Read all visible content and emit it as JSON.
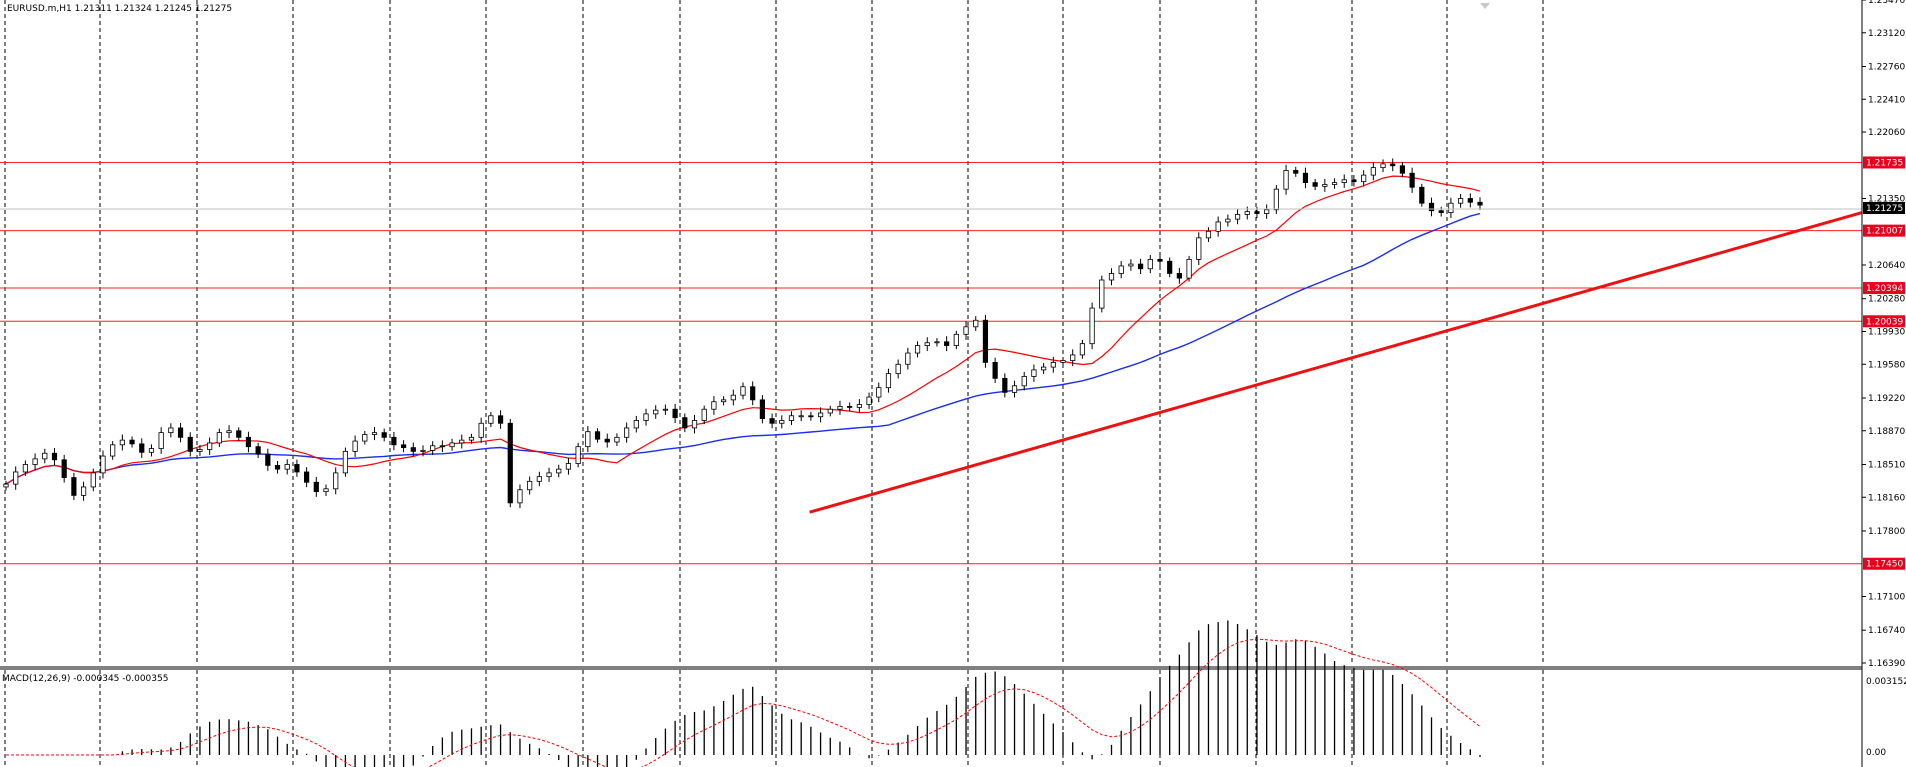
{
  "header": {
    "symbol_line": "EURUSD.m,H1  1.21311 1.21324 1.21245 1.21275"
  },
  "macd_header": {
    "text": "MACD(12,26,9) -0.000345 -0.000355"
  },
  "colors": {
    "background": "#ffffff",
    "candle": "#000000",
    "level_line": "#ff2020",
    "level_label_bg": "#e8001c",
    "trendline": "#ee1111",
    "ma_fast": "#ff0000",
    "ma_slow": "#1a2ef0",
    "macd_hist": "#000000",
    "macd_signal": "#ff0000",
    "grid": "#000000"
  },
  "chart_data": [
    {
      "type": "candlestick",
      "symbol": "EURUSD.m",
      "timeframe": "H1",
      "ohlc_last": {
        "open": 1.21311,
        "high": 1.21324,
        "low": 1.21245,
        "close": 1.21275
      },
      "current_price_label": "1.21275",
      "ylim": [
        1.1639,
        1.2347
      ],
      "y_ticks": [
        "1.23470",
        "1.23120",
        "1.22760",
        "1.22410",
        "1.22060",
        "1.21350",
        "1.20640",
        "1.20280",
        "1.19930",
        "1.19580",
        "1.19220",
        "1.18870",
        "1.18510",
        "1.18160",
        "1.17800",
        "1.17100",
        "1.16740",
        "1.16390"
      ],
      "horizontal_levels": [
        {
          "value": 1.21735,
          "label": "1.21735"
        },
        {
          "value": 1.21007,
          "label": "1.21007"
        },
        {
          "value": 1.20394,
          "label": "1.20394"
        },
        {
          "value": 1.20039,
          "label": "1.20039"
        },
        {
          "value": 1.1745,
          "label": "1.17450"
        }
      ],
      "trendline": {
        "from": [
          0.293,
          1.18
        ],
        "to": [
          1.0,
          1.212
        ]
      },
      "close_series": [
        1.183,
        1.1843,
        1.1851,
        1.1857,
        1.1863,
        1.1856,
        1.1837,
        1.1818,
        1.1827,
        1.1842,
        1.186,
        1.1872,
        1.1877,
        1.1873,
        1.1864,
        1.1868,
        1.1885,
        1.189,
        1.188,
        1.1865,
        1.1867,
        1.1874,
        1.1885,
        1.1887,
        1.188,
        1.187,
        1.1862,
        1.185,
        1.1846,
        1.1851,
        1.1843,
        1.1832,
        1.1822,
        1.1825,
        1.1842,
        1.1865,
        1.1876,
        1.1883,
        1.1885,
        1.188,
        1.1872,
        1.1869,
        1.1865,
        1.1866,
        1.1871,
        1.187,
        1.1874,
        1.1877,
        1.188,
        1.1895,
        1.1903,
        1.1895,
        1.181,
        1.1824,
        1.1833,
        1.1838,
        1.1842,
        1.1846,
        1.1852,
        1.187,
        1.1886,
        1.1878,
        1.1875,
        1.188,
        1.189,
        1.1898,
        1.1905,
        1.1909,
        1.191,
        1.1901,
        1.189,
        1.1898,
        1.191,
        1.1918,
        1.192,
        1.1925,
        1.1934,
        1.192,
        1.19,
        1.1895,
        1.1898,
        1.1903,
        1.1903,
        1.1902,
        1.1906,
        1.191,
        1.1913,
        1.1912,
        1.1915,
        1.1923,
        1.1933,
        1.1948,
        1.1958,
        1.197,
        1.1978,
        1.1981,
        1.1982,
        1.1978,
        1.199,
        1.1998,
        1.2005,
        1.196,
        1.1943,
        1.1928,
        1.1935,
        1.1945,
        1.1952,
        1.1955,
        1.196,
        1.1962,
        1.1968,
        1.198,
        1.2018,
        1.2048,
        1.2055,
        1.2063,
        1.2065,
        1.206,
        1.207,
        1.2068,
        1.2055,
        1.205,
        1.207,
        1.2093,
        1.21,
        1.211,
        1.2113,
        1.2118,
        1.2121,
        1.2119,
        1.2123,
        1.2145,
        1.2165,
        1.2162,
        1.2152,
        1.2148,
        1.215,
        1.2152,
        1.2155,
        1.2153,
        1.216,
        1.2168,
        1.2172,
        1.217,
        1.2162,
        1.2147,
        1.213,
        1.2122,
        1.212,
        1.213,
        1.2135,
        1.2131,
        1.2128
      ]
    },
    {
      "type": "line",
      "series": [
        {
          "name": "",
          "role": "fast moving average",
          "color": "#ff0000"
        },
        {
          "name": "",
          "role": "slow moving average",
          "color": "#1a2ef0"
        }
      ]
    },
    {
      "type": "bar",
      "indicator": "MACD(12,26,9)",
      "main": -0.000345,
      "signal": -0.000355,
      "y_ticks": [
        "0.003152",
        "0.00"
      ],
      "ylim": [
        -0.0005,
        0.0033
      ]
    }
  ]
}
